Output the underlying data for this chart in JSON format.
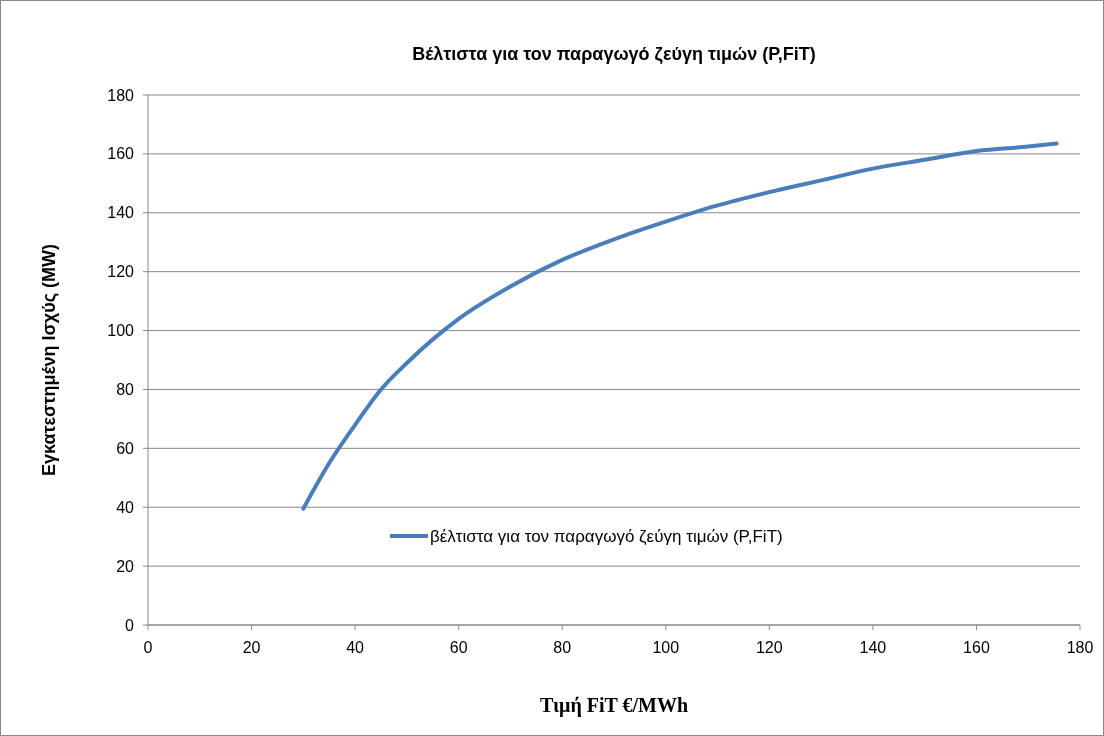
{
  "chart_data": {
    "type": "line",
    "title": "Βέλτιστα για τον παραγωγό ζεύγη τιμών (P,FiT)",
    "xlabel": "Τιμή  FiT €/MWh",
    "ylabel": "Εγκατεστημένη Ισχύς (MW)",
    "xlim": [
      0,
      180
    ],
    "xticks": [
      0,
      20,
      40,
      60,
      80,
      100,
      120,
      140,
      160,
      180
    ],
    "ylim": [
      0,
      180
    ],
    "yticks": [
      0,
      20,
      40,
      60,
      80,
      100,
      120,
      140,
      160,
      180
    ],
    "grid": "y",
    "legend": "right",
    "marker": "none",
    "line_style": "solid",
    "series": [
      {
        "name": "βέλτιστα για τον παραγωγό ζεύγη τιμών (P,FiT)",
        "color": "#4a7ebb",
        "x": [
          30,
          35,
          40,
          45,
          50,
          55,
          60,
          70,
          80,
          90,
          100,
          110,
          120,
          130,
          140,
          150,
          160,
          170,
          175.5
        ],
        "values": [
          39.5,
          55,
          68,
          80,
          89,
          97,
          104,
          115,
          124,
          131,
          137,
          142.5,
          147,
          151,
          155,
          158,
          161,
          162.5,
          163.5
        ]
      }
    ]
  }
}
